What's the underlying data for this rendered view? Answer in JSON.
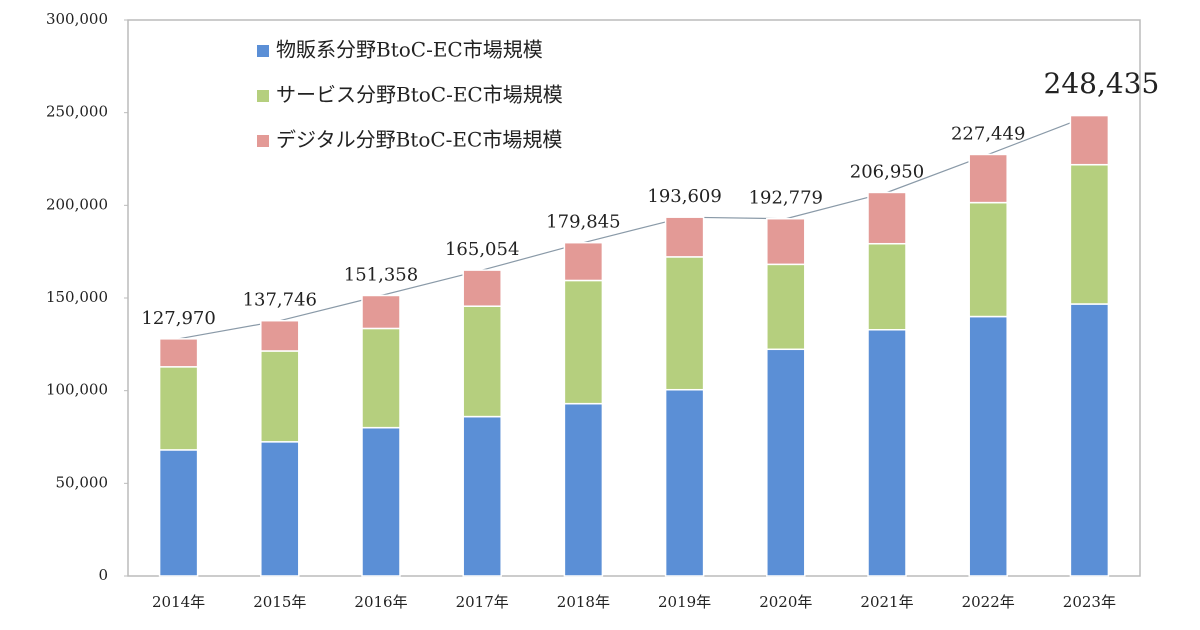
{
  "chart_data": {
    "type": "stacked-bar",
    "categories": [
      "2014年",
      "2015年",
      "2016年",
      "2017年",
      "2018年",
      "2019年",
      "2020年",
      "2021年",
      "2022年",
      "2023年"
    ],
    "series": [
      {
        "name": "物販系分野BtoC-EC市場規模",
        "color": "#5b8fd6",
        "values": [
          68043,
          72398,
          80043,
          86008,
          92992,
          100515,
          122333,
          132865,
          139997,
          146760
        ]
      },
      {
        "name": "サービス分野BtoC-EC市場規模",
        "color": "#b5cf7e",
        "values": [
          44816,
          49014,
          53532,
          59568,
          66471,
          71672,
          45832,
          46424,
          61477,
          75169
        ]
      },
      {
        "name": "デジタル分野BtoC-EC市場規模",
        "color": "#e39a96",
        "values": [
          15111,
          16334,
          17782,
          19478,
          20382,
          21422,
          24614,
          27661,
          25974,
          26506
        ]
      }
    ],
    "totals": {
      "values": [
        127970,
        137746,
        151358,
        165054,
        179845,
        193609,
        192779,
        206950,
        227449,
        248435
      ],
      "value_labels": [
        "127,970",
        "137,746",
        "151,358",
        "165,054",
        "179,845",
        "193,609",
        "192,779",
        "206,950",
        "227,449",
        "248,435"
      ]
    },
    "ylim": [
      0,
      300000
    ],
    "yticks": [
      0,
      {
        "value": 50000,
        "label": "50,000"
      },
      {
        "value": 100000,
        "label": "100,000"
      },
      {
        "value": 150000,
        "label": "150,000"
      },
      {
        "value": 200000,
        "label": "200,000"
      },
      {
        "value": 250000,
        "label": "250,000"
      },
      {
        "value": 300000,
        "label": "300,000"
      }
    ],
    "grid": false
  }
}
